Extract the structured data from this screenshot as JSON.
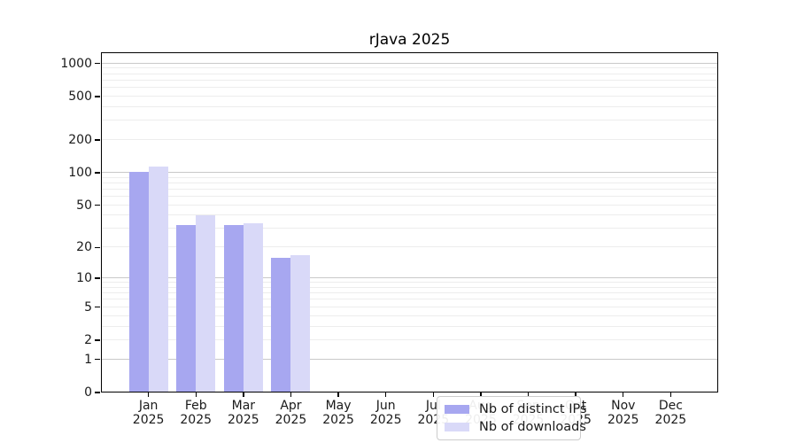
{
  "chart_data": {
    "type": "bar",
    "title": "rJava 2025",
    "year_label": "2025",
    "categories": [
      "Jan",
      "Feb",
      "Mar",
      "Apr",
      "May",
      "Jun",
      "Jul",
      "Aug",
      "Sep",
      "Oct",
      "Nov",
      "Dec"
    ],
    "series": [
      {
        "name": "Nb of distinct IPs",
        "color": "#a7a7f0",
        "values": [
          102,
          33,
          33,
          16,
          0,
          0,
          0,
          0,
          0,
          0,
          0,
          0
        ]
      },
      {
        "name": "Nb of downloads",
        "color": "#d9d9f8",
        "values": [
          113,
          40,
          34,
          17,
          0,
          0,
          0,
          0,
          0,
          0,
          0,
          0
        ]
      }
    ],
    "yscale": "log1p",
    "ylim": [
      0,
      1267
    ],
    "yticks": [
      0,
      1,
      2,
      5,
      10,
      20,
      50,
      100,
      200,
      500,
      1000
    ],
    "grid": {
      "major": [
        1,
        10,
        100,
        1000
      ],
      "minor": [
        2,
        3,
        4,
        5,
        6,
        7,
        8,
        9,
        20,
        30,
        40,
        50,
        60,
        70,
        80,
        90,
        200,
        300,
        400,
        500,
        600,
        700,
        800,
        900
      ]
    },
    "legend_position": "lower-center-left",
    "colors": {
      "axis": "#000000",
      "grid_major": "#c9c9c9",
      "grid_minor": "#ededed"
    }
  }
}
